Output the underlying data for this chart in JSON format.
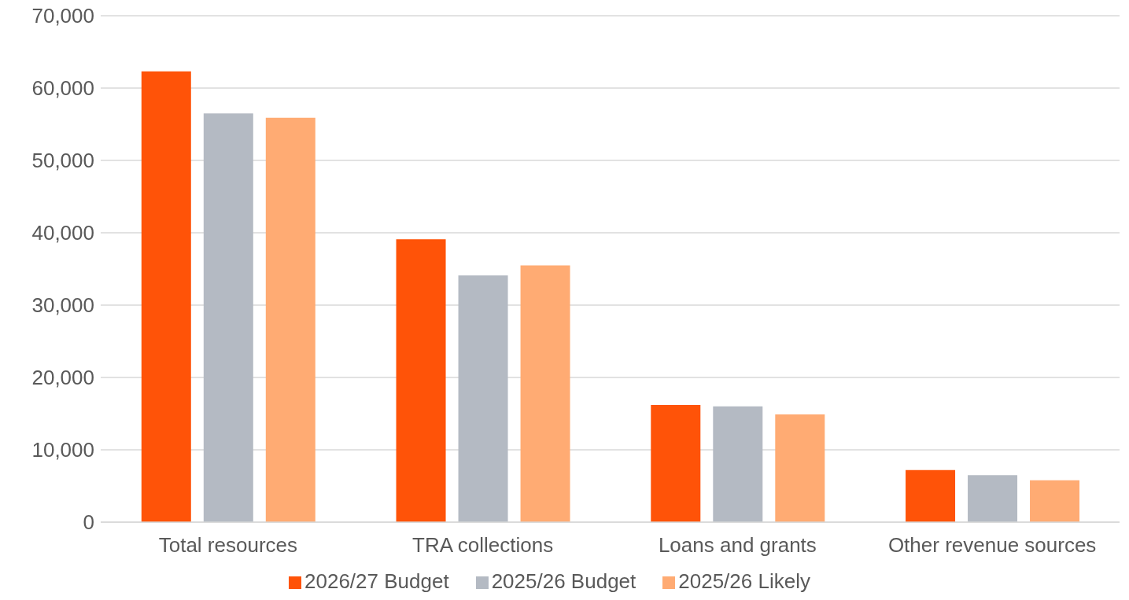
{
  "chart_data": {
    "type": "bar",
    "categories": [
      "Total resources",
      "TRA collections",
      "Loans and grants",
      "Other revenue sources"
    ],
    "series": [
      {
        "name": "2026/27 Budget",
        "color": "#ff5308",
        "values": [
          62300,
          39100,
          16200,
          7200
        ]
      },
      {
        "name": "2025/26 Budget",
        "color": "#b4bac3",
        "values": [
          56500,
          34100,
          16000,
          6500
        ]
      },
      {
        "name": "2025/26 Likely",
        "color": "#ffab73",
        "values": [
          55900,
          35500,
          14900,
          5800
        ]
      }
    ],
    "ylim": [
      0,
      70000
    ],
    "yticks": [
      {
        "value": 0,
        "label": "0"
      },
      {
        "value": 10000,
        "label": "10,000"
      },
      {
        "value": 20000,
        "label": "20,000"
      },
      {
        "value": 30000,
        "label": "30,000"
      },
      {
        "value": 40000,
        "label": "40,000"
      },
      {
        "value": 50000,
        "label": "50,000"
      },
      {
        "value": 60000,
        "label": "60,000"
      },
      {
        "value": 70000,
        "label": "70,000"
      }
    ],
    "grid": "y",
    "legend": "bottom"
  }
}
